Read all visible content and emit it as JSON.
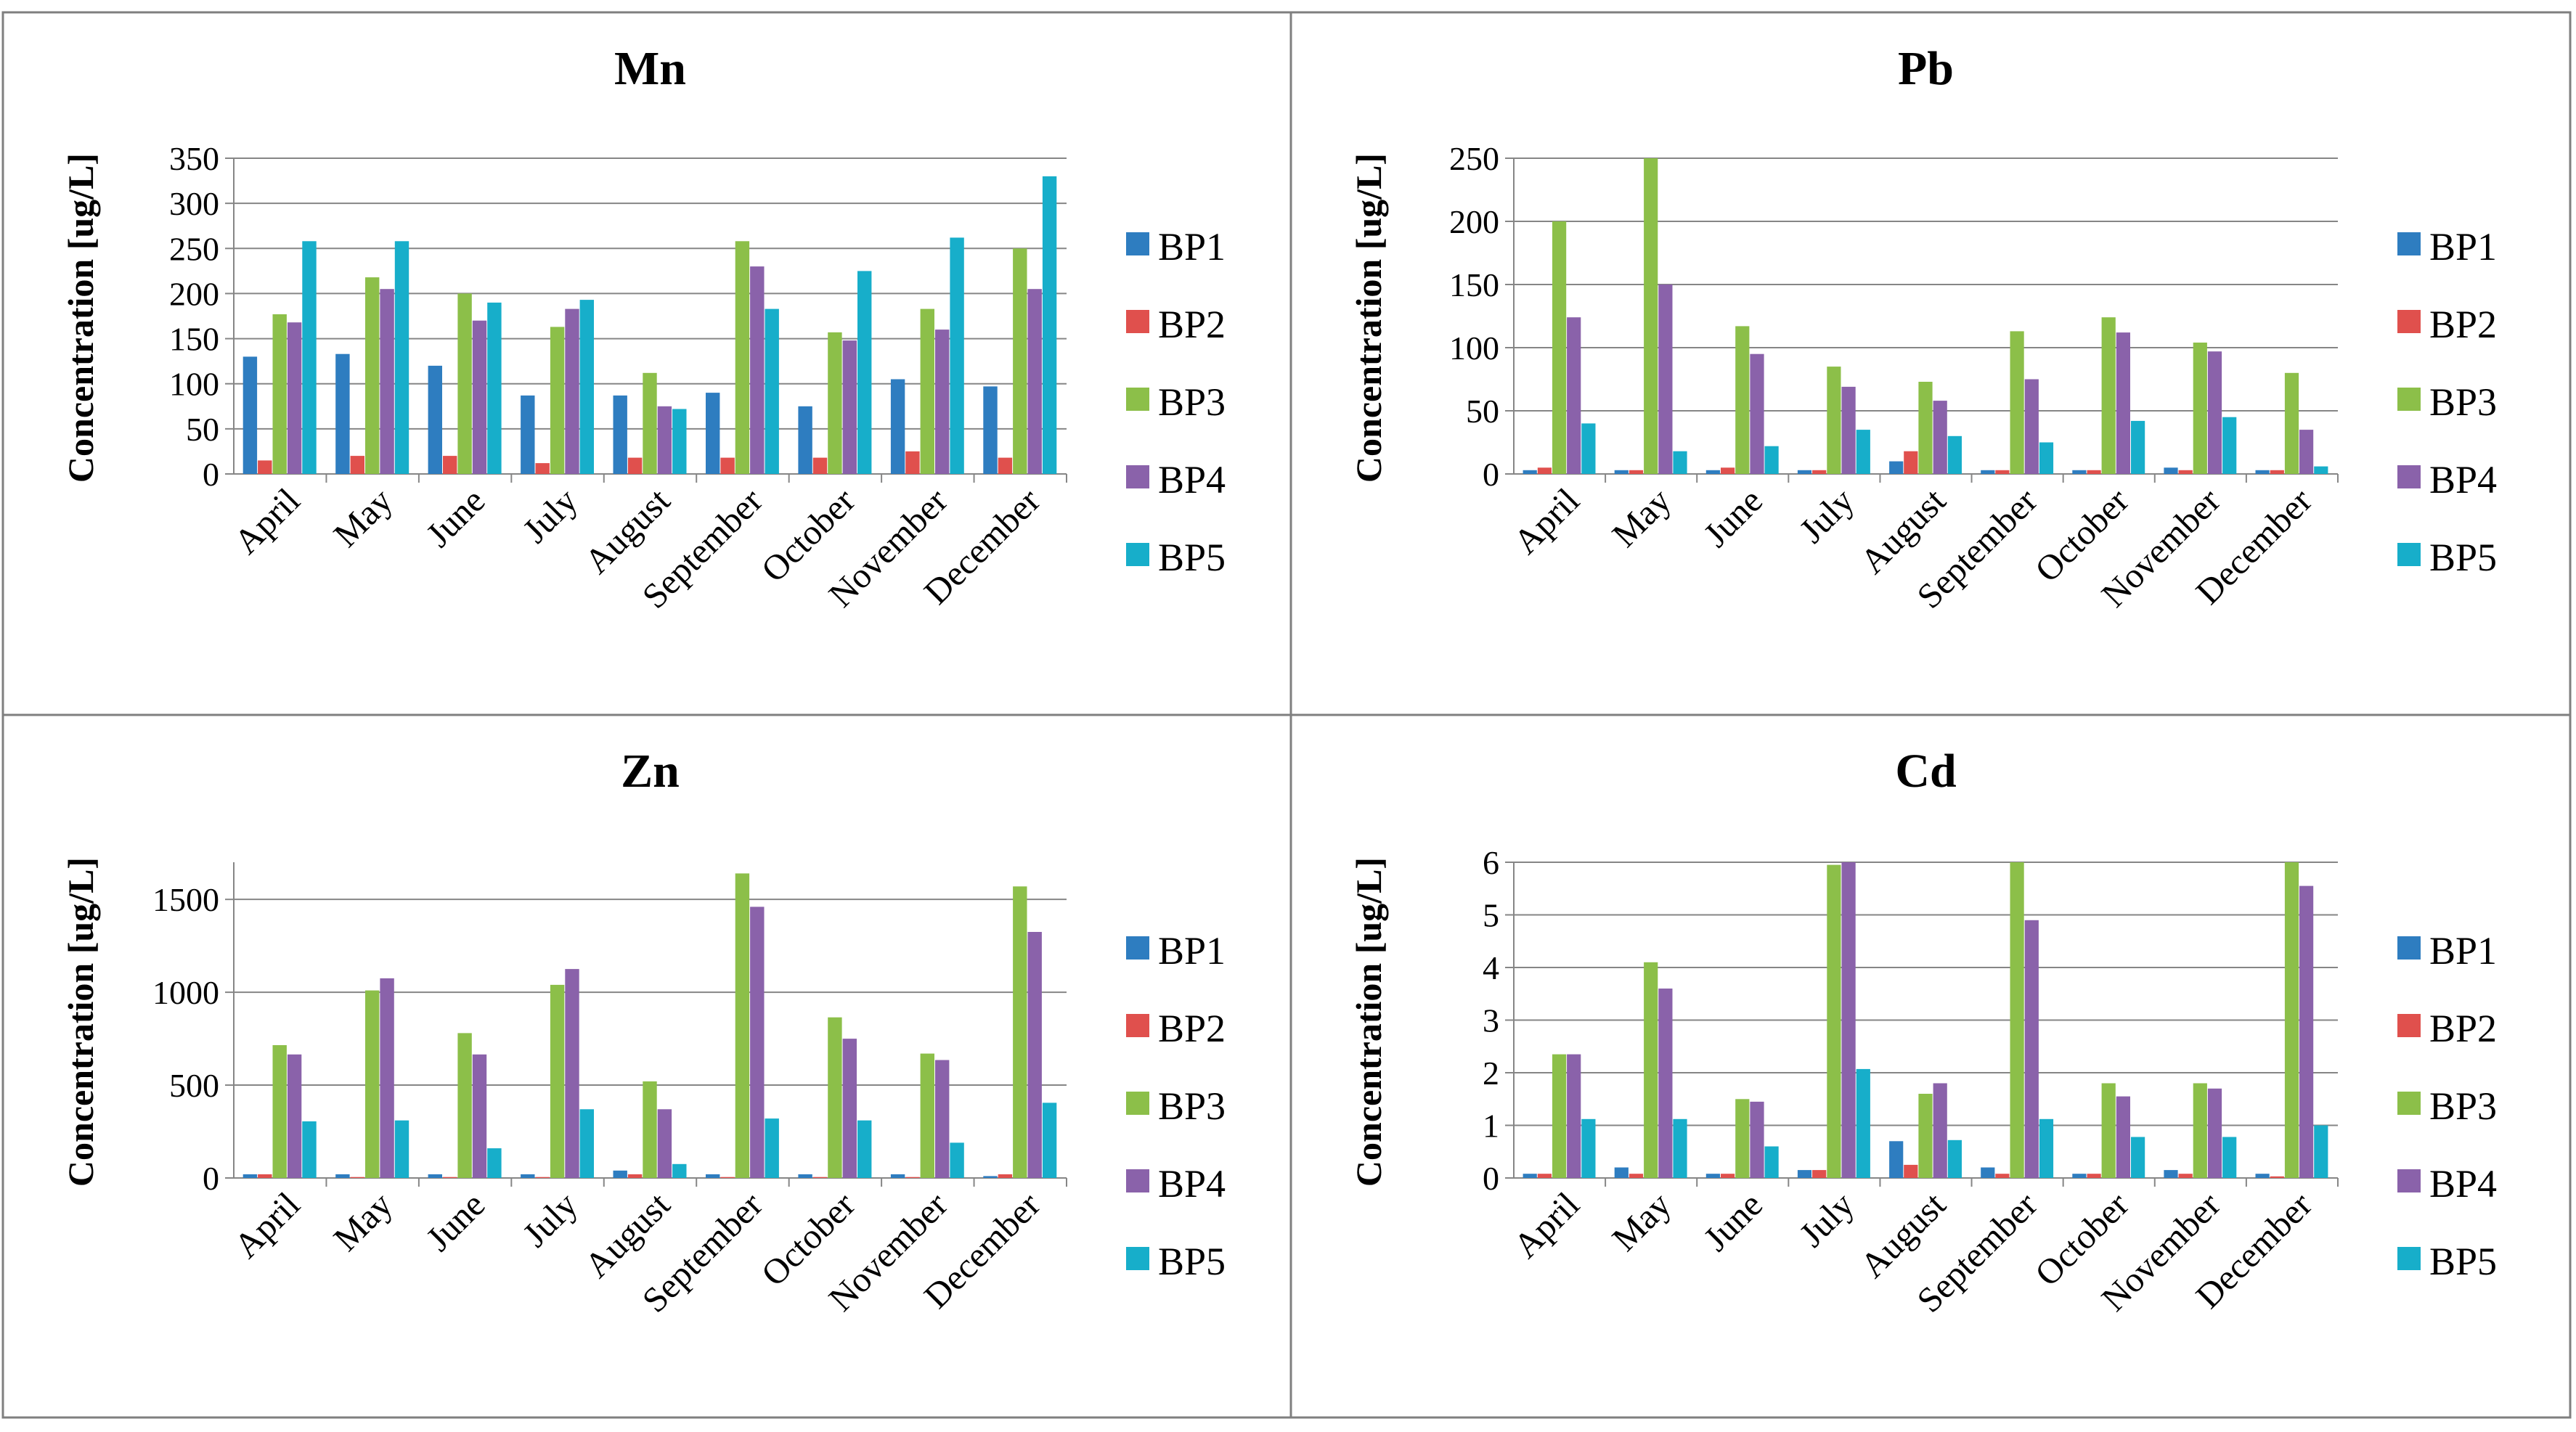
{
  "figure": {
    "layout": "2x2 grid"
  },
  "series_colors": {
    "BP1": "#2E7DC0",
    "BP2": "#E0504D",
    "BP3": "#8CBF49",
    "BP4": "#8A62AA",
    "BP5": "#17AECA"
  },
  "chart_data": [
    {
      "type": "bar",
      "title": "Mn",
      "xlabel": "",
      "ylabel": "Concentration [ug/L]",
      "ylim": [
        0,
        350
      ],
      "yticks": [
        0,
        50,
        100,
        150,
        200,
        250,
        300,
        350
      ],
      "ytick_labels": [
        "0",
        "50",
        "100",
        "150",
        "200",
        "250",
        "300",
        "350"
      ],
      "grid": true,
      "legend_position": "right",
      "categories": [
        "April",
        "May",
        "June",
        "July",
        "August",
        "September",
        "October",
        "November",
        "December"
      ],
      "series": [
        {
          "name": "BP1",
          "values": [
            130,
            133,
            120,
            87,
            87,
            90,
            75,
            105,
            97
          ]
        },
        {
          "name": "BP2",
          "values": [
            15,
            20,
            20,
            12,
            18,
            18,
            18,
            25,
            18
          ]
        },
        {
          "name": "BP3",
          "values": [
            177,
            218,
            200,
            163,
            112,
            258,
            157,
            183,
            250
          ]
        },
        {
          "name": "BP4",
          "values": [
            168,
            205,
            170,
            183,
            75,
            230,
            148,
            160,
            205
          ]
        },
        {
          "name": "BP5",
          "values": [
            258,
            258,
            190,
            193,
            72,
            183,
            225,
            262,
            330
          ]
        }
      ]
    },
    {
      "type": "bar",
      "title": "Pb",
      "xlabel": "",
      "ylabel": "Concentration [ug/L]",
      "ylim": [
        0,
        250
      ],
      "yticks": [
        0,
        50,
        100,
        150,
        200,
        250
      ],
      "ytick_labels": [
        "0",
        "50",
        "100",
        "150",
        "200",
        "250"
      ],
      "grid": true,
      "legend_position": "right",
      "categories": [
        "April",
        "May",
        "June",
        "July",
        "August",
        "September",
        "October",
        "November",
        "December"
      ],
      "series": [
        {
          "name": "BP1",
          "values": [
            3,
            3,
            3,
            3,
            10,
            3,
            3,
            5,
            3
          ]
        },
        {
          "name": "BP2",
          "values": [
            5,
            3,
            5,
            3,
            18,
            3,
            3,
            3,
            3
          ]
        },
        {
          "name": "BP3",
          "values": [
            200,
            250,
            117,
            85,
            73,
            113,
            124,
            104,
            80
          ]
        },
        {
          "name": "BP4",
          "values": [
            124,
            150,
            95,
            69,
            58,
            75,
            112,
            97,
            35
          ]
        },
        {
          "name": "BP5",
          "values": [
            40,
            18,
            22,
            35,
            30,
            25,
            42,
            45,
            6
          ]
        }
      ]
    },
    {
      "type": "bar",
      "title": "Zn",
      "xlabel": "",
      "ylabel": "Concentration [ug/L]",
      "ylim": [
        0,
        1700
      ],
      "yticks": [
        0,
        500,
        1000,
        1500
      ],
      "ytick_labels": [
        "0",
        "500",
        "1000",
        "1500"
      ],
      "grid": true,
      "legend_position": "right",
      "categories": [
        "April",
        "May",
        "June",
        "July",
        "August",
        "September",
        "October",
        "November",
        "December"
      ],
      "series": [
        {
          "name": "BP1",
          "values": [
            20,
            20,
            20,
            20,
            40,
            20,
            20,
            20,
            10
          ]
        },
        {
          "name": "BP2",
          "values": [
            20,
            5,
            5,
            5,
            20,
            5,
            5,
            5,
            20
          ]
        },
        {
          "name": "BP3",
          "values": [
            715,
            1010,
            780,
            1040,
            520,
            1640,
            865,
            670,
            1570
          ]
        },
        {
          "name": "BP4",
          "values": [
            665,
            1075,
            665,
            1125,
            370,
            1460,
            750,
            635,
            1325
          ]
        },
        {
          "name": "BP5",
          "values": [
            305,
            310,
            160,
            370,
            75,
            320,
            310,
            190,
            405
          ]
        }
      ]
    },
    {
      "type": "bar",
      "title": "Cd",
      "xlabel": "",
      "ylabel": "Concentration [ug/L]",
      "ylim": [
        0,
        6
      ],
      "yticks": [
        0,
        1,
        2,
        3,
        4,
        5,
        6
      ],
      "ytick_labels": [
        "0",
        "1",
        "2",
        "3",
        "4",
        "5",
        "6"
      ],
      "grid": true,
      "legend_position": "right",
      "categories": [
        "April",
        "May",
        "June",
        "July",
        "August",
        "September",
        "October",
        "November",
        "December"
      ],
      "series": [
        {
          "name": "BP1",
          "values": [
            0.08,
            0.2,
            0.08,
            0.15,
            0.7,
            0.2,
            0.08,
            0.15,
            0.08
          ]
        },
        {
          "name": "BP2",
          "values": [
            0.08,
            0.08,
            0.08,
            0.15,
            0.25,
            0.08,
            0.08,
            0.08,
            0.03
          ]
        },
        {
          "name": "BP3",
          "values": [
            2.35,
            4.1,
            1.5,
            5.95,
            1.6,
            6.0,
            1.8,
            1.8,
            6.0
          ]
        },
        {
          "name": "BP4",
          "values": [
            2.35,
            3.6,
            1.45,
            6.0,
            1.8,
            4.9,
            1.55,
            1.7,
            5.55
          ]
        },
        {
          "name": "BP5",
          "values": [
            1.12,
            1.12,
            0.6,
            2.07,
            0.72,
            1.12,
            0.78,
            0.78,
            1.0
          ]
        }
      ]
    }
  ]
}
